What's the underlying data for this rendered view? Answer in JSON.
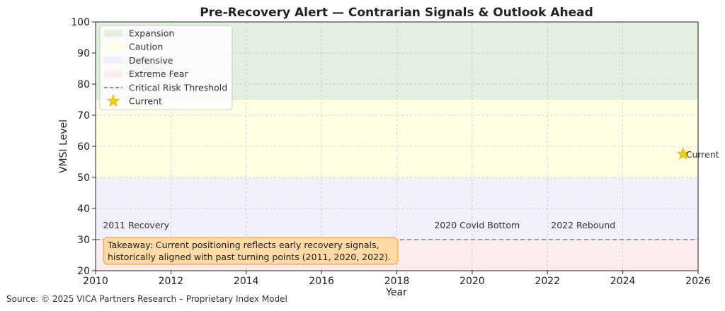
{
  "chart_data": {
    "type": "line",
    "title": "Pre-Recovery Alert — Contrarian Signals & Outlook Ahead",
    "xlabel": "Year",
    "ylabel": "VMSI Level",
    "xlim": [
      2010,
      2026
    ],
    "ylim": [
      20,
      100
    ],
    "xticks": [
      2010,
      2012,
      2014,
      2016,
      2018,
      2020,
      2022,
      2024,
      2026
    ],
    "yticks": [
      20,
      30,
      40,
      50,
      60,
      70,
      80,
      90,
      100
    ],
    "grid": true,
    "legend_position": "top-left",
    "zones": [
      {
        "name": "Expansion",
        "from": 75,
        "to": 100,
        "color": "#e3efdf"
      },
      {
        "name": "Caution",
        "from": 50,
        "to": 75,
        "color": "#fefee2"
      },
      {
        "name": "Defensive",
        "from": 30,
        "to": 50,
        "color": "#eff0fc"
      },
      {
        "name": "Extreme Fear",
        "from": 20,
        "to": 30,
        "color": "#fdeeed"
      }
    ],
    "threshold": {
      "name": "Critical Risk Threshold",
      "y": 30,
      "color": "#808080"
    },
    "current": {
      "name": "Current",
      "x": 2025.6,
      "y": 57.5,
      "label": "Current",
      "color": "#f3cd12"
    },
    "annotations": [
      {
        "text": "2011 Recovery",
        "x": 2010.1,
        "y": 35
      },
      {
        "text": "2020 Covid Bottom",
        "x": 2018.9,
        "y": 35
      },
      {
        "text": "2022 Rebound",
        "x": 2022.0,
        "y": 35
      }
    ],
    "takeaway": [
      "Takeaway: Current positioning reflects early recovery signals,",
      "historically aligned with past turning points (2011, 2020, 2022)."
    ],
    "source": "Source: © 2025 VICA Partners Research – Proprietary Index Model"
  }
}
